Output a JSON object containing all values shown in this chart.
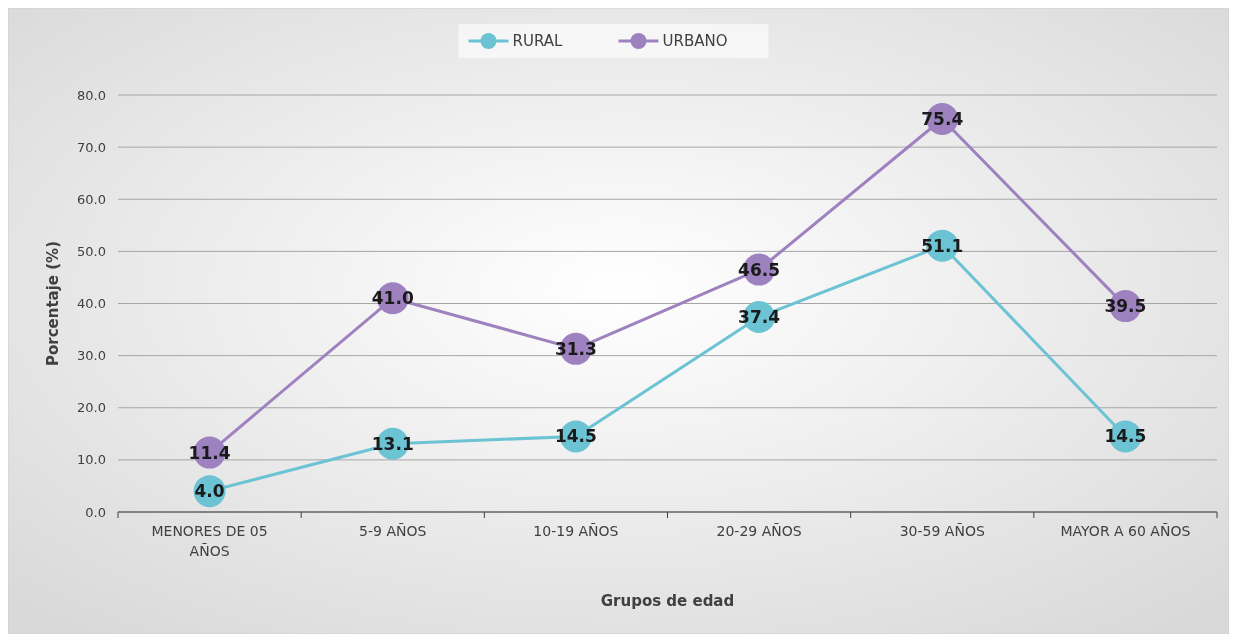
{
  "chart_data": {
    "type": "line",
    "xlabel": "Grupos de edad",
    "ylabel": "Porcentaje (%)",
    "categories": [
      "MENORES DE 05 AÑOS",
      "5-9 AÑOS",
      "10-19 AÑOS",
      "20-29 AÑOS",
      "30-59 AÑOS",
      "MAYOR A 60 AÑOS"
    ],
    "series": [
      {
        "name": "RURAL",
        "color": "#6cc3d3",
        "values": [
          4.0,
          13.1,
          14.5,
          37.4,
          51.1,
          14.5
        ],
        "value_labels": [
          "4.0",
          "13.1",
          "14.5",
          "37.4",
          "51.1",
          "14.5"
        ]
      },
      {
        "name": "URBANO",
        "color": "#9e82c0",
        "values": [
          11.4,
          41.0,
          31.3,
          46.5,
          75.4,
          39.5
        ],
        "value_labels": [
          "11.4",
          "41.0",
          "31.3",
          "46.5",
          "75.4",
          "39.5"
        ]
      }
    ],
    "ylim": [
      0,
      80
    ],
    "yticks": [
      {
        "value": 0,
        "label": "0.0"
      },
      {
        "value": 10,
        "label": "10.0"
      },
      {
        "value": 20,
        "label": "20.0"
      },
      {
        "value": 30,
        "label": "30.0"
      },
      {
        "value": 40,
        "label": "40.0"
      },
      {
        "value": 50,
        "label": "50.0"
      },
      {
        "value": 60,
        "label": "60.0"
      },
      {
        "value": 70,
        "label": "70.0"
      },
      {
        "value": 80,
        "label": "80.0"
      }
    ],
    "grid": "y",
    "legend": "top",
    "marker": "circle",
    "line_style": "solid"
  }
}
